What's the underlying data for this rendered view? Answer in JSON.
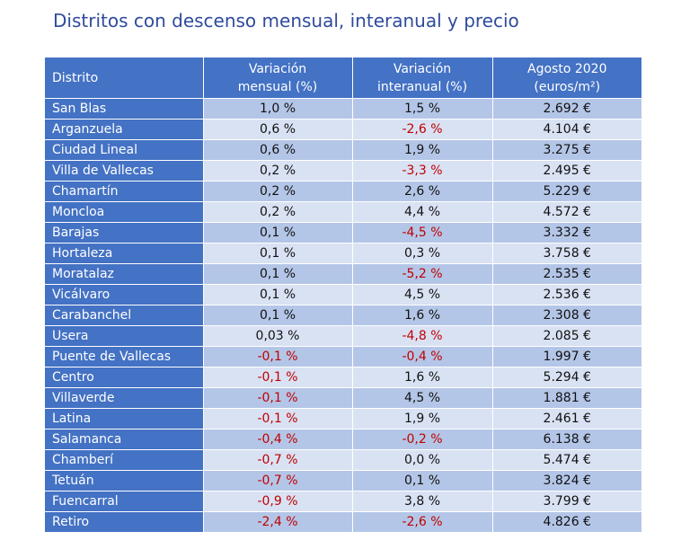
{
  "title": "Distritos con descenso mensual, interanual y precio",
  "headers": {
    "district": "Distrito",
    "monthly_line1": "Variación",
    "monthly_line2": "mensual (%)",
    "yearly_line1": "Variación",
    "yearly_line2": "interanual (%)",
    "price_line1": "Agosto 2020",
    "price_line2": "(euros/m²)"
  },
  "rows": [
    {
      "district": "San Blas",
      "monthly": "1,0 %",
      "yearly": "1,5 %",
      "price": "2.692 €"
    },
    {
      "district": "Arganzuela",
      "monthly": "0,6 %",
      "yearly": "-2,6 %",
      "price": "4.104 €"
    },
    {
      "district": "Ciudad Lineal",
      "monthly": "0,6 %",
      "yearly": "1,9 %",
      "price": "3.275 €"
    },
    {
      "district": "Villa de Vallecas",
      "monthly": "0,2 %",
      "yearly": "-3,3 %",
      "price": "2.495 €"
    },
    {
      "district": "Chamartín",
      "monthly": "0,2 %",
      "yearly": "2,6 %",
      "price": "5.229 €"
    },
    {
      "district": "Moncloa",
      "monthly": "0,2 %",
      "yearly": "4,4 %",
      "price": "4.572 €"
    },
    {
      "district": "Barajas",
      "monthly": "0,1 %",
      "yearly": "-4,5 %",
      "price": "3.332 €"
    },
    {
      "district": "Hortaleza",
      "monthly": "0,1 %",
      "yearly": "0,3 %",
      "price": "3.758 €"
    },
    {
      "district": "Moratalaz",
      "monthly": "0,1 %",
      "yearly": "-5,2 %",
      "price": "2.535 €"
    },
    {
      "district": "Vicálvaro",
      "monthly": "0,1 %",
      "yearly": "4,5 %",
      "price": "2.536 €"
    },
    {
      "district": "Carabanchel",
      "monthly": "0,1 %",
      "yearly": "1,6 %",
      "price": "2.308 €"
    },
    {
      "district": "Usera",
      "monthly": "0,03 %",
      "yearly": "-4,8 %",
      "price": "2.085 €"
    },
    {
      "district": "Puente de Vallecas",
      "monthly": "-0,1 %",
      "yearly": "-0,4 %",
      "price": "1.997 €"
    },
    {
      "district": "Centro",
      "monthly": "-0,1 %",
      "yearly": "1,6 %",
      "price": "5.294 €"
    },
    {
      "district": "Villaverde",
      "monthly": "-0,1 %",
      "yearly": "4,5 %",
      "price": "1.881 €"
    },
    {
      "district": "Latina",
      "monthly": "-0,1 %",
      "yearly": "1,9 %",
      "price": "2.461 €"
    },
    {
      "district": "Salamanca",
      "monthly": "-0,4 %",
      "yearly": "-0,2 %",
      "price": "6.138 €"
    },
    {
      "district": "Chamberí",
      "monthly": "-0,7 %",
      "yearly": "0,0 %",
      "price": "5.474 €"
    },
    {
      "district": "Tetuán",
      "monthly": "-0,7 %",
      "yearly": "0,1 %",
      "price": "3.824 €"
    },
    {
      "district": "Fuencarral",
      "monthly": "-0,9 %",
      "yearly": "3,8 %",
      "price": "3.799 €"
    },
    {
      "district": "Retiro",
      "monthly": "-2,4 %",
      "yearly": "-2,6 %",
      "price": "4.826 €"
    }
  ],
  "colors": {
    "header_bg": "#4472c4",
    "title": "#2f4b9c",
    "row_light": "#d9e2f3",
    "row_dark": "#b4c6e7",
    "negative": "#c00000"
  }
}
